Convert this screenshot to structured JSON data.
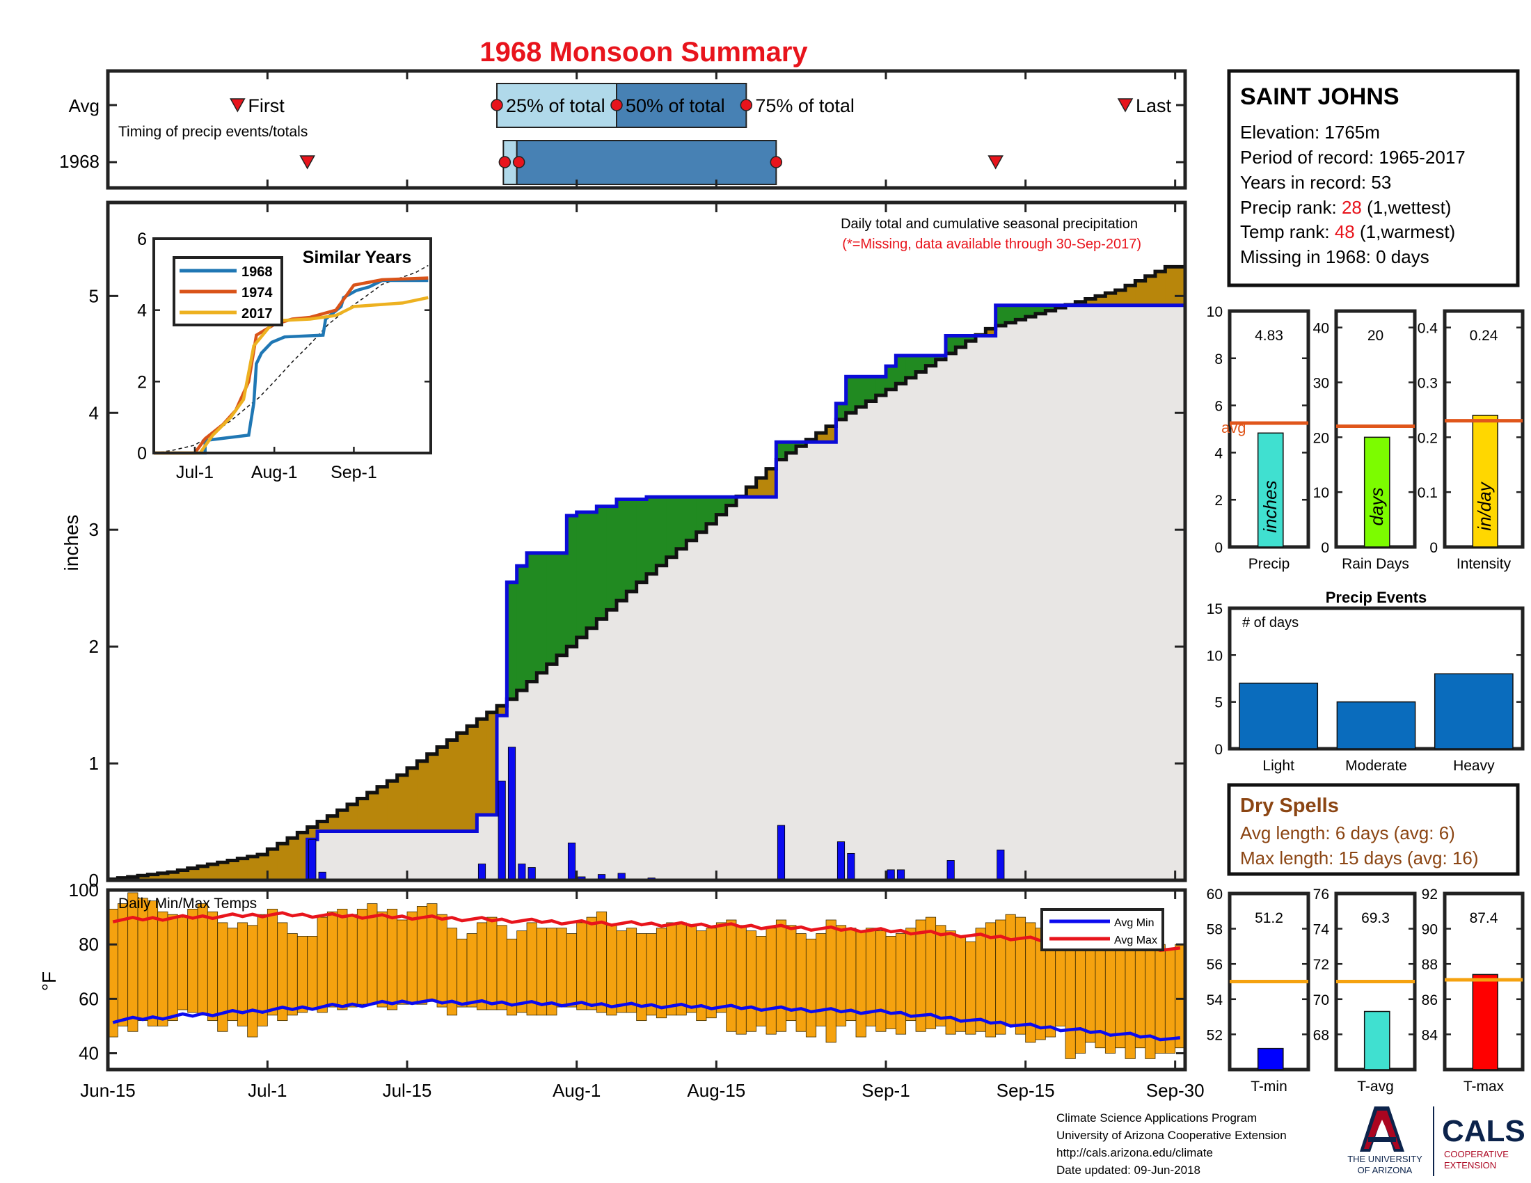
{
  "title": "1968 Monsoon Summary",
  "colors": {
    "title": "#e8141c",
    "precip_bar": "#0b0bf0",
    "cum_line": "#0b0bd8",
    "wet_fill": "#218a21",
    "dry_fill": "#b8860b",
    "background_fill": "#e8e6e4",
    "temp_bar": "#f5a20f",
    "avg_min": "#0b0bf0",
    "avg_max": "#e8141c",
    "event_bar": "#0a6cbd",
    "dry_spell_text": "#8b4513",
    "rank_red": "#e8141c",
    "avg_line": "#e0561b"
  },
  "timing": {
    "row_labels": [
      "Avg",
      "1968"
    ],
    "subtitle": "Timing of precip events/totals",
    "labels": {
      "first": "First",
      "p25": "25% of total",
      "p50": "50% of total",
      "p75": "75% of total",
      "last": "Last"
    },
    "avg": {
      "first": "2025-06-28",
      "p25": "2025-07-24",
      "p50": "2025-08-05",
      "p75": "2025-08-18",
      "last": "2025-09-25"
    },
    "y1968": {
      "first": "2025-07-05",
      "p25": "2025-07-25",
      "p50": "2025-07-26",
      "p75": "2025-08-21",
      "last": "2025-09-12"
    }
  },
  "station": {
    "name": "SAINT JOHNS",
    "elevation": "Elevation: 1765m",
    "period": "Period of record: 1965-2017",
    "years": "Years in record: 53",
    "precip_rank_label": "Precip rank: ",
    "precip_rank_value": "28",
    "precip_rank_note": " (1,wettest)",
    "temp_rank_label": "Temp rank: ",
    "temp_rank_value": "48",
    "temp_rank_note": " (1,warmest)",
    "missing": "Missing in 1968: 0 days"
  },
  "chart_data": [
    {
      "type": "line",
      "title": "Daily total and cumulative seasonal precipitation",
      "subtitle": "(*=Missing, data available through 30-Sep-2017)",
      "ylabel": "inches",
      "ylim": [
        0,
        5.8
      ],
      "yticks": [
        0,
        1,
        2,
        3,
        4,
        5
      ],
      "x_tick_labels": [
        "Jun-15",
        "Jul-1",
        "Jul-15",
        "Aug-1",
        "Aug-15",
        "Sep-1",
        "Sep-15",
        "Sep-30"
      ],
      "x_tick_dates": [
        "2025-06-15",
        "2025-07-01",
        "2025-07-15",
        "2025-08-01",
        "2025-08-15",
        "2025-09-01",
        "2025-09-15",
        "2025-09-30"
      ],
      "daily_precip_1968": [
        {
          "date": "2025-07-05",
          "value": 0.35
        },
        {
          "date": "2025-07-06",
          "value": 0.07
        },
        {
          "date": "2025-07-22",
          "value": 0.14
        },
        {
          "date": "2025-07-24",
          "value": 0.85
        },
        {
          "date": "2025-07-25",
          "value": 1.14
        },
        {
          "date": "2025-07-26",
          "value": 0.14
        },
        {
          "date": "2025-07-27",
          "value": 0.11
        },
        {
          "date": "2025-07-31",
          "value": 0.32
        },
        {
          "date": "2025-08-01",
          "value": 0.03
        },
        {
          "date": "2025-08-03",
          "value": 0.05
        },
        {
          "date": "2025-08-05",
          "value": 0.06
        },
        {
          "date": "2025-08-08",
          "value": 0.02
        },
        {
          "date": "2025-08-21",
          "value": 0.47
        },
        {
          "date": "2025-08-27",
          "value": 0.33
        },
        {
          "date": "2025-08-28",
          "value": 0.23
        },
        {
          "date": "2025-09-01",
          "value": 0.09
        },
        {
          "date": "2025-09-02",
          "value": 0.09
        },
        {
          "date": "2025-09-07",
          "value": 0.17
        },
        {
          "date": "2025-09-12",
          "value": 0.26
        }
      ],
      "avg_cumulative": [
        {
          "date": "2025-06-15",
          "value": 0
        },
        {
          "date": "2025-06-22",
          "value": 0.07
        },
        {
          "date": "2025-07-01",
          "value": 0.22
        },
        {
          "date": "2025-07-08",
          "value": 0.55
        },
        {
          "date": "2025-07-15",
          "value": 0.9
        },
        {
          "date": "2025-07-23",
          "value": 1.38
        },
        {
          "date": "2025-07-26",
          "value": 1.55
        },
        {
          "date": "2025-08-01",
          "value": 2.0
        },
        {
          "date": "2025-08-08",
          "value": 2.55
        },
        {
          "date": "2025-08-15",
          "value": 3.05
        },
        {
          "date": "2025-08-22",
          "value": 3.6
        },
        {
          "date": "2025-08-29",
          "value": 4.0
        },
        {
          "date": "2025-09-05",
          "value": 4.35
        },
        {
          "date": "2025-09-12",
          "value": 4.72
        },
        {
          "date": "2025-09-19",
          "value": 4.9
        },
        {
          "date": "2025-09-25",
          "value": 5.05
        },
        {
          "date": "2025-09-30",
          "value": 5.25
        }
      ]
    },
    {
      "type": "line",
      "title": "Similar Years",
      "ylim": [
        0,
        6
      ],
      "yticks": [
        0,
        2,
        4,
        6
      ],
      "x_tick_labels": [
        "Jul-1",
        "Aug-1",
        "Sep-1"
      ],
      "series": [
        {
          "name": "1968",
          "color": "#1f77b4",
          "points": [
            {
              "date": "2025-06-15",
              "value": 0
            },
            {
              "date": "2025-07-05",
              "value": 0
            },
            {
              "date": "2025-07-05",
              "value": 0.35
            },
            {
              "date": "2025-07-22",
              "value": 0.5
            },
            {
              "date": "2025-07-24",
              "value": 1.4
            },
            {
              "date": "2025-07-25",
              "value": 2.5
            },
            {
              "date": "2025-07-27",
              "value": 2.8
            },
            {
              "date": "2025-07-31",
              "value": 3.1
            },
            {
              "date": "2025-08-05",
              "value": 3.25
            },
            {
              "date": "2025-08-20",
              "value": 3.3
            },
            {
              "date": "2025-08-21",
              "value": 3.75
            },
            {
              "date": "2025-08-27",
              "value": 4.1
            },
            {
              "date": "2025-08-28",
              "value": 4.35
            },
            {
              "date": "2025-09-02",
              "value": 4.55
            },
            {
              "date": "2025-09-07",
              "value": 4.65
            },
            {
              "date": "2025-09-12",
              "value": 4.83
            },
            {
              "date": "2025-09-30",
              "value": 4.83
            }
          ]
        },
        {
          "name": "1974",
          "color": "#d95319",
          "points": [
            {
              "date": "2025-06-15",
              "value": 0
            },
            {
              "date": "2025-07-01",
              "value": 0
            },
            {
              "date": "2025-07-05",
              "value": 0.4
            },
            {
              "date": "2025-07-12",
              "value": 0.8
            },
            {
              "date": "2025-07-17",
              "value": 1.2
            },
            {
              "date": "2025-07-22",
              "value": 2.0
            },
            {
              "date": "2025-07-25",
              "value": 3.3
            },
            {
              "date": "2025-08-01",
              "value": 3.6
            },
            {
              "date": "2025-08-08",
              "value": 3.75
            },
            {
              "date": "2025-08-15",
              "value": 3.8
            },
            {
              "date": "2025-08-25",
              "value": 4.0
            },
            {
              "date": "2025-09-01",
              "value": 4.7
            },
            {
              "date": "2025-09-12",
              "value": 4.85
            },
            {
              "date": "2025-09-30",
              "value": 4.9
            }
          ]
        },
        {
          "name": "2017",
          "color": "#edb120",
          "points": [
            {
              "date": "2025-06-15",
              "value": 0
            },
            {
              "date": "2025-07-03",
              "value": 0
            },
            {
              "date": "2025-07-08",
              "value": 0.5
            },
            {
              "date": "2025-07-15",
              "value": 1.0
            },
            {
              "date": "2025-07-20",
              "value": 1.5
            },
            {
              "date": "2025-07-24",
              "value": 3.0
            },
            {
              "date": "2025-08-01",
              "value": 3.7
            },
            {
              "date": "2025-08-15",
              "value": 3.75
            },
            {
              "date": "2025-08-25",
              "value": 3.85
            },
            {
              "date": "2025-09-01",
              "value": 4.1
            },
            {
              "date": "2025-09-20",
              "value": 4.2
            },
            {
              "date": "2025-09-30",
              "value": 4.35
            }
          ]
        }
      ]
    },
    {
      "type": "bar",
      "title": "Daily Min/Max Temps",
      "ylabel": "°F",
      "ylim": [
        34,
        100
      ],
      "yticks": [
        40,
        60,
        80,
        100
      ],
      "legend": [
        "Avg Min",
        "Avg Max"
      ],
      "avg_min": [
        {
          "date": "2025-06-15",
          "value": 52
        },
        {
          "date": "2025-07-01",
          "value": 56
        },
        {
          "date": "2025-07-15",
          "value": 59
        },
        {
          "date": "2025-08-01",
          "value": 58
        },
        {
          "date": "2025-08-15",
          "value": 57
        },
        {
          "date": "2025-09-01",
          "value": 55
        },
        {
          "date": "2025-09-15",
          "value": 50
        },
        {
          "date": "2025-09-30",
          "value": 45
        }
      ],
      "avg_max": [
        {
          "date": "2025-06-15",
          "value": 89
        },
        {
          "date": "2025-07-01",
          "value": 91
        },
        {
          "date": "2025-07-15",
          "value": 90
        },
        {
          "date": "2025-08-01",
          "value": 88
        },
        {
          "date": "2025-08-15",
          "value": 87
        },
        {
          "date": "2025-09-01",
          "value": 85
        },
        {
          "date": "2025-09-15",
          "value": 82
        },
        {
          "date": "2025-09-30",
          "value": 78
        }
      ],
      "daily_max_pattern": [
        93,
        95,
        99,
        97,
        96,
        92,
        91,
        90,
        93,
        95,
        92,
        88,
        86,
        88,
        87,
        91,
        93,
        88,
        84,
        83,
        83,
        90,
        92,
        93,
        91,
        93,
        95,
        92,
        93,
        89,
        92,
        94,
        95,
        91,
        86,
        82,
        84,
        88,
        90,
        87,
        82,
        85,
        88,
        86,
        86,
        86,
        84,
        88,
        90,
        92,
        87,
        85,
        86,
        84,
        84,
        86,
        88,
        88,
        87,
        85,
        86,
        88,
        89,
        87,
        85,
        83,
        86,
        89,
        87,
        84,
        82,
        84,
        89,
        87,
        86,
        85,
        86,
        85,
        83,
        84,
        86,
        89,
        90,
        87,
        85,
        83,
        81,
        86,
        88,
        89,
        91,
        90,
        88,
        86,
        84,
        82,
        80,
        82,
        84,
        82,
        80,
        78,
        80,
        82,
        83,
        80,
        78,
        80
      ],
      "daily_min_pattern": [
        46,
        50,
        48,
        52,
        50,
        50,
        52,
        56,
        55,
        54,
        52,
        48,
        52,
        50,
        46,
        50,
        54,
        52,
        54,
        55,
        56,
        55,
        57,
        56,
        57,
        58,
        58,
        57,
        56,
        58,
        58,
        58,
        59,
        57,
        54,
        57,
        57,
        56,
        56,
        56,
        54,
        55,
        54,
        54,
        54,
        57,
        57,
        56,
        56,
        55,
        54,
        55,
        55,
        52,
        54,
        53,
        54,
        54,
        55,
        52,
        53,
        55,
        48,
        47,
        48,
        50,
        47,
        48,
        52,
        48,
        46,
        50,
        44,
        50,
        52,
        46,
        50,
        48,
        49,
        47,
        52,
        48,
        49,
        50,
        47,
        48,
        47,
        48,
        46,
        47,
        50,
        47,
        44,
        45,
        46,
        50,
        38,
        40,
        44,
        42,
        40,
        42,
        38,
        42,
        38,
        40,
        40,
        42
      ]
    },
    {
      "type": "bar",
      "panel": "precip",
      "categories": [
        "Precip"
      ],
      "values": [
        4.83
      ],
      "avg": 5.25,
      "ylim": [
        0,
        10
      ],
      "yticks": [
        0,
        2,
        4,
        6,
        8,
        10
      ],
      "value_label": "4.83",
      "unit": "inches",
      "xlabel": "Precip",
      "avg_label": "avg",
      "color": "#40e0d0"
    },
    {
      "type": "bar",
      "panel": "raindays",
      "categories": [
        "Rain Days"
      ],
      "values": [
        20
      ],
      "avg": 22,
      "ylim": [
        0,
        43
      ],
      "yticks": [
        0,
        10,
        20,
        30,
        40
      ],
      "value_label": "20",
      "unit": "days",
      "xlabel": "Rain Days",
      "color": "#7cfc00"
    },
    {
      "type": "bar",
      "panel": "intensity",
      "categories": [
        "Intensity"
      ],
      "values": [
        0.24
      ],
      "avg": 0.23,
      "ylim": [
        0,
        0.43
      ],
      "yticks": [
        0,
        0.1,
        0.2,
        0.3,
        0.4
      ],
      "value_label": "0.24",
      "unit": "in/day",
      "xlabel": "Intensity",
      "color": "#ffd700"
    },
    {
      "type": "bar",
      "panel": "events",
      "title": "Precip Events",
      "ylabel": "# of days",
      "categories": [
        "Light",
        "Moderate",
        "Heavy"
      ],
      "values": [
        7,
        5,
        8
      ],
      "ylim": [
        0,
        15
      ],
      "yticks": [
        0,
        5,
        10,
        15
      ],
      "color": "#0a6cbd"
    },
    {
      "type": "bar",
      "panel": "tmin",
      "categories": [
        "T-min"
      ],
      "values": [
        51.2
      ],
      "avg": 55,
      "ylim": [
        50,
        60
      ],
      "yticks": [
        52,
        54,
        56,
        58,
        60
      ],
      "value_label": "51.2",
      "xlabel": "T-min",
      "color": "#0000ff"
    },
    {
      "type": "bar",
      "panel": "tavg",
      "categories": [
        "T-avg"
      ],
      "values": [
        69.3
      ],
      "avg": 71,
      "ylim": [
        66,
        76
      ],
      "yticks": [
        68,
        70,
        72,
        74,
        76
      ],
      "value_label": "69.3",
      "xlabel": "T-avg",
      "color": "#40e0d0"
    },
    {
      "type": "bar",
      "panel": "tmax",
      "categories": [
        "T-max"
      ],
      "values": [
        87.4
      ],
      "avg": 87.1,
      "ylim": [
        82,
        92
      ],
      "yticks": [
        84,
        86,
        88,
        90,
        92
      ],
      "value_label": "87.4",
      "xlabel": "T-max",
      "color": "#ff0000"
    }
  ],
  "dry_spells": {
    "title": "Dry Spells",
    "avg": "Avg length: 6 days (avg: 6)",
    "max": "Max length: 15 days (avg: 16)"
  },
  "footer": {
    "line1": "Climate Science Applications Program",
    "line2": "University of Arizona Cooperative Extension",
    "line3": "http://cals.arizona.edu/climate",
    "line4": " Date updated: 09-Jun-2018"
  },
  "logos": {
    "ua_line1": "THE UNIVERSITY",
    "ua_line2": "OF ARIZONA",
    "cals": "CALS",
    "cals_sub1": "COOPERATIVE",
    "cals_sub2": "EXTENSION"
  }
}
